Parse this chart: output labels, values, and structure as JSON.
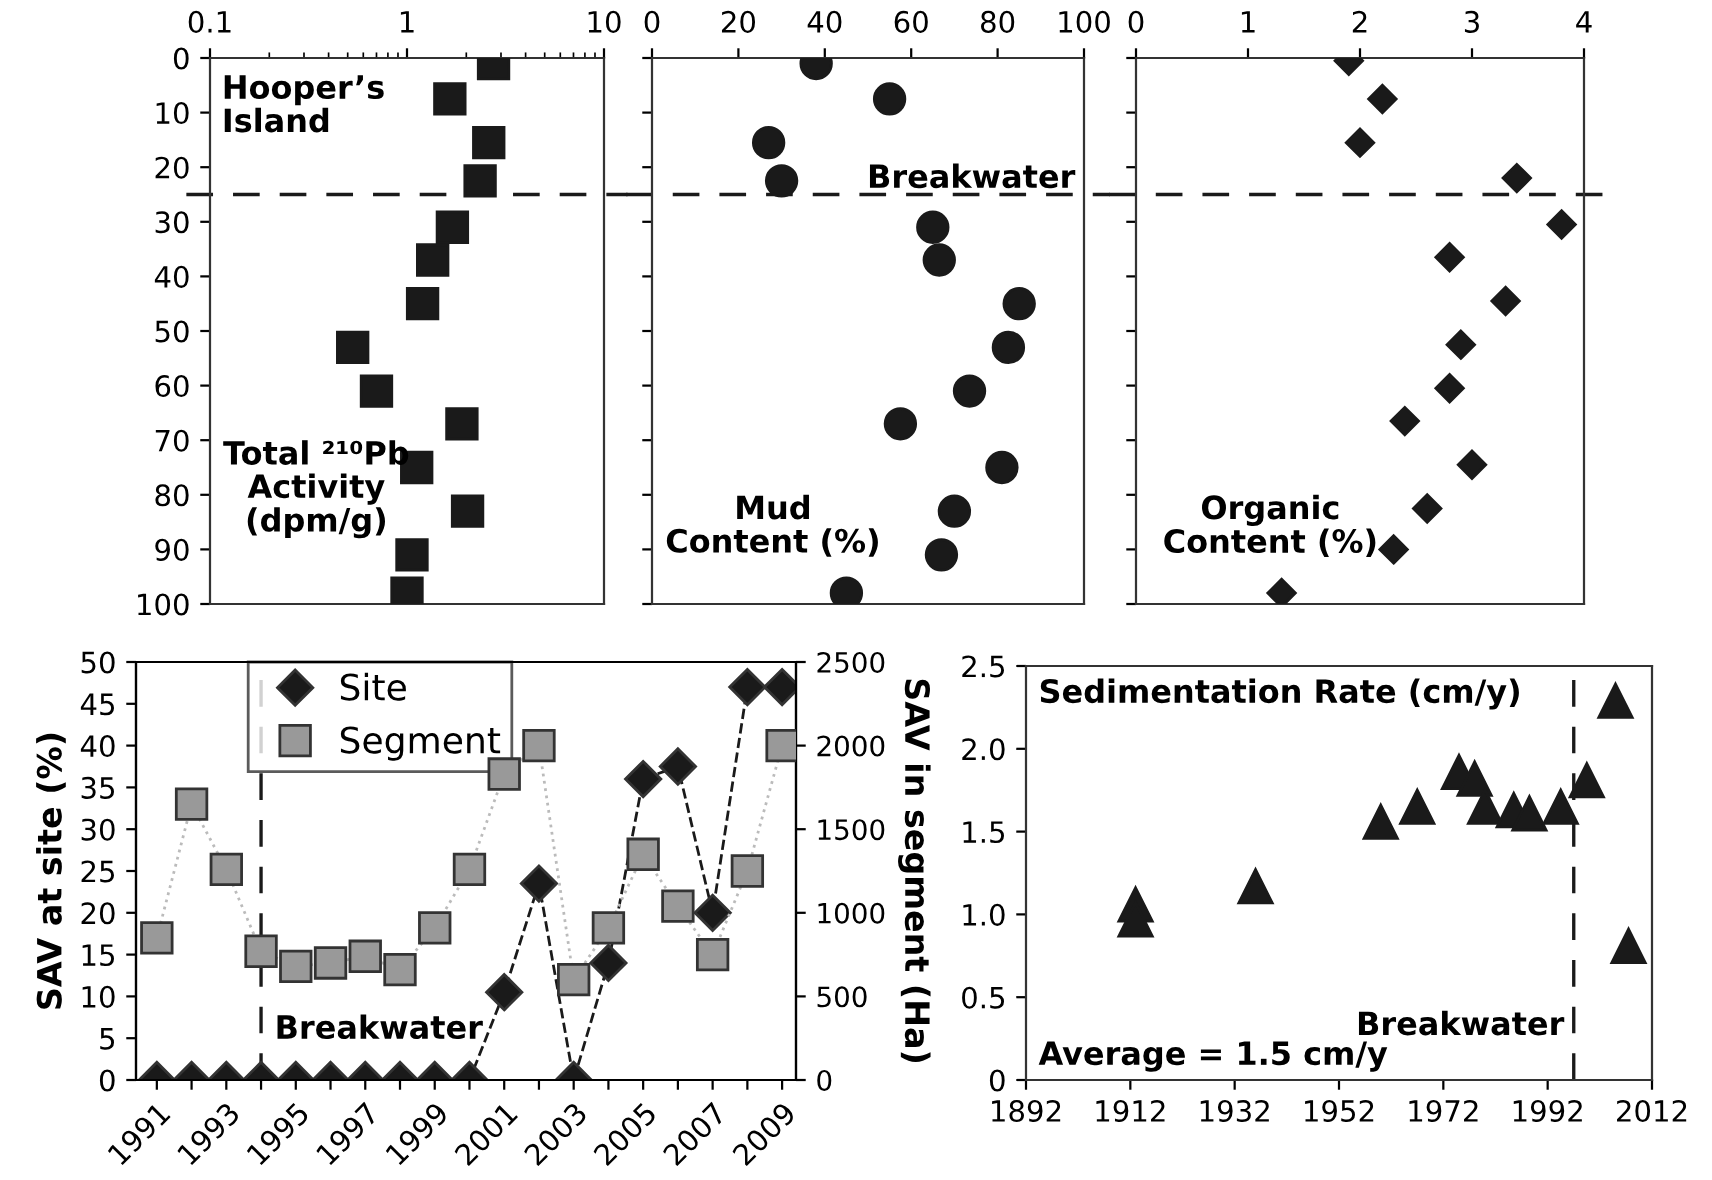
{
  "chart_data": [
    {
      "type": "scatter",
      "log": "x",
      "xlim": [
        0.1,
        10
      ],
      "xticks": [
        0.1,
        1,
        10
      ],
      "ylim": [
        100,
        0
      ],
      "yticks": [
        0,
        10,
        20,
        30,
        40,
        50,
        60,
        70,
        80,
        90,
        100
      ],
      "marker": "square",
      "grid": false,
      "annotations": [
        "Hooper’s\nIsland",
        "Total ²¹⁰Pb\nActivity\n(dpm/g)"
      ],
      "ref_lines": [
        {
          "axis": "y",
          "value": 25,
          "line_style": "dashed"
        }
      ],
      "series": [
        {
          "color": "#1a1a1a",
          "x": [
            2.75,
            1.65,
            2.6,
            2.35,
            1.7,
            1.35,
            1.2,
            0.53,
            0.7,
            1.9,
            1.12,
            2.03,
            1.06,
            1.0
          ],
          "values": [
            1,
            7.5,
            15.5,
            22.5,
            31,
            37,
            45,
            53,
            61,
            67,
            75,
            83,
            91,
            98
          ]
        }
      ]
    },
    {
      "type": "scatter",
      "xlim": [
        0,
        100
      ],
      "xticks": [
        0,
        20,
        40,
        60,
        80,
        100
      ],
      "ylim": [
        100,
        0
      ],
      "yticks": [
        0,
        10,
        20,
        30,
        40,
        50,
        60,
        70,
        80,
        90,
        100
      ],
      "tick_labels": "x",
      "marker": "circle",
      "grid": false,
      "annotations": [
        "Mud\nContent (%)"
      ],
      "ref_lines": [
        {
          "axis": "y",
          "value": 25,
          "label": "Breakwater",
          "line_style": "dashed"
        }
      ],
      "series": [
        {
          "color": "#1a1a1a",
          "x": [
            38,
            55,
            27,
            30,
            65,
            66.5,
            85,
            82.5,
            73.5,
            57.5,
            81,
            70,
            67,
            45
          ],
          "values": [
            1,
            7.5,
            15.5,
            22.5,
            31,
            37,
            45,
            53,
            61,
            67,
            75,
            83,
            91,
            98
          ]
        }
      ]
    },
    {
      "type": "scatter",
      "xlim": [
        0,
        4
      ],
      "xticks": [
        0,
        1,
        2,
        3,
        4
      ],
      "ylim": [
        100,
        0
      ],
      "yticks": [
        0,
        10,
        20,
        30,
        40,
        50,
        60,
        70,
        80,
        90,
        100
      ],
      "tick_labels": "x",
      "marker": "diamond",
      "grid": false,
      "annotations": [
        "Organic\nContent (%)"
      ],
      "ref_lines": [
        {
          "axis": "y",
          "value": 25,
          "line_style": "dashed"
        }
      ],
      "series": [
        {
          "color": "#1a1a1a",
          "x": [
            1.9,
            2.2,
            2.0,
            3.4,
            3.8,
            2.8,
            3.3,
            2.9,
            2.8,
            2.4,
            3.0,
            2.6,
            2.3,
            1.3
          ],
          "values": [
            0.5,
            7.5,
            15.5,
            22,
            30.5,
            36.5,
            44.5,
            52.5,
            60.5,
            66.5,
            74.5,
            82.5,
            90,
            98
          ]
        }
      ]
    },
    {
      "type": "line",
      "x": [
        1991,
        1992,
        1993,
        1994,
        1995,
        1996,
        1997,
        1998,
        1999,
        2000,
        2001,
        2002,
        2003,
        2004,
        2005,
        2006,
        2007,
        2008,
        2009
      ],
      "xlim": [
        1990.4,
        2009.4
      ],
      "xticks": [
        1991,
        {
          "value": 1992,
          "label": null
        },
        1993,
        {
          "value": 1994,
          "label": null
        },
        1995,
        {
          "value": 1996,
          "label": null
        },
        1997,
        {
          "value": 1998,
          "label": null
        },
        1999,
        {
          "value": 2000,
          "label": null
        },
        2001,
        {
          "value": 2002,
          "label": null
        },
        2003,
        {
          "value": 2004,
          "label": null
        },
        2005,
        {
          "value": 2006,
          "label": null
        },
        2007,
        {
          "value": 2008,
          "label": null
        },
        2009
      ],
      "ylim": [
        0,
        50
      ],
      "yticks": [
        0,
        5,
        10,
        15,
        20,
        25,
        30,
        35,
        40,
        45,
        50
      ],
      "y2lim": [
        0,
        2500
      ],
      "y2ticks": [
        0,
        500,
        1000,
        1500,
        2000,
        2500
      ],
      "ylabel": "SAV at site (%)",
      "y2label": "SAV in segment (Ha)",
      "legend": "top left",
      "grid": false,
      "ref_lines": [
        {
          "axis": "x",
          "value": 1994,
          "label": "Breakwater",
          "line_style": "dashed"
        }
      ],
      "series": [
        {
          "name": "Site",
          "color": "#1a1a1a",
          "marker": "diamond",
          "line_style": "dashed",
          "values": [
            0,
            0,
            0,
            0,
            0,
            0,
            0,
            0,
            0,
            0,
            10.5,
            23.5,
            0,
            14,
            36,
            37.5,
            20,
            47,
            47
          ]
        },
        {
          "name": "Segment",
          "color": "#999999",
          "marker": "square",
          "line_style": "dotted",
          "axis": "y2",
          "values": [
            850,
            1650,
            1260,
            770,
            680,
            700,
            740,
            660,
            910,
            1260,
            1830,
            2000,
            600,
            910,
            1350,
            1040,
            750,
            1250,
            2000
          ]
        }
      ]
    },
    {
      "type": "scatter",
      "xlim": [
        1892,
        2012
      ],
      "xticks": [
        1892,
        1912,
        1932,
        1952,
        1972,
        1992,
        2012
      ],
      "ylim": [
        0,
        2.5
      ],
      "yticks": [
        0,
        0.5,
        {
          "value": 1,
          "label": "1.0"
        },
        1.5,
        {
          "value": 2,
          "label": "2.0"
        },
        2.5
      ],
      "marker": "triangle",
      "grid": false,
      "annotations": [
        "Sedimentation Rate (cm/y)",
        "Average = 1.5 cm/y"
      ],
      "ref_lines": [
        {
          "axis": "x",
          "value": 1997,
          "label": "Breakwater",
          "line_style": "dashed"
        }
      ],
      "series": [
        {
          "color": "#1a1a1a",
          "x": [
            1913,
            1913,
            1936,
            1960,
            1967,
            1975,
            1978,
            1980,
            1985.5,
            1988.5,
            1994.5,
            1999.5,
            2005,
            2007.5
          ],
          "values": [
            1.06,
            0.97,
            1.17,
            1.56,
            1.65,
            1.86,
            1.82,
            1.65,
            1.63,
            1.61,
            1.65,
            1.81,
            2.29,
            0.81
          ]
        }
      ]
    }
  ]
}
